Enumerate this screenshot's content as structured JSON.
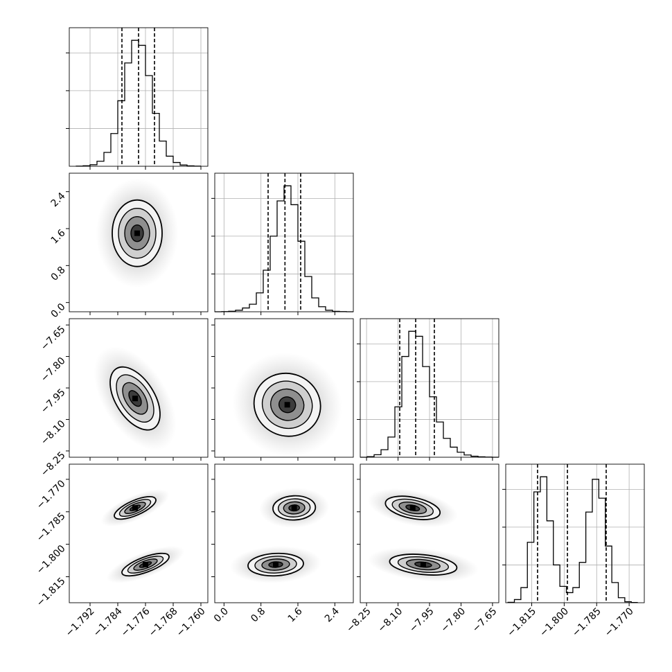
{
  "chart_data": {
    "type": "corner",
    "grid": true,
    "hist_ylim": [
      0,
      1100
    ],
    "hist_yticks": [
      300,
      600,
      900
    ],
    "params": [
      {
        "lim": [
          -1.798,
          -1.758
        ],
        "ticks": [
          {
            "value": -1.792,
            "label": "−1.792"
          },
          {
            "value": -1.784,
            "label": "−1.784"
          },
          {
            "value": -1.776,
            "label": "−1.776"
          },
          {
            "value": -1.768,
            "label": "−1.768"
          },
          {
            "value": -1.76,
            "label": "−1.760"
          }
        ]
      },
      {
        "lim": [
          -0.2,
          2.8
        ],
        "ticks": [
          {
            "value": 0,
            "label": "0.0"
          },
          {
            "value": 0.8,
            "label": "0.8"
          },
          1.6,
          2.4
        ]
      },
      {
        "lim": [
          -8.28,
          -7.62
        ],
        "ticks": [
          {
            "value": -8.25,
            "label": "−8.25"
          },
          {
            "value": -8.1,
            "label": "−8.10"
          },
          {
            "value": -7.95,
            "label": "−7.95"
          },
          {
            "value": -7.8,
            "label": "−7.80"
          },
          {
            "value": -7.65,
            "label": "−7.65"
          }
        ]
      },
      {
        "lim": [
          -1.827,
          -1.763
        ],
        "ticks": [
          {
            "value": -1.815,
            "label": "−1.815"
          },
          {
            "value": -1.8,
            "label": "−1.800"
          },
          {
            "value": -1.785,
            "label": "−1.785"
          },
          {
            "value": -1.77,
            "label": "−1.770"
          }
        ]
      }
    ],
    "histograms": [
      {
        "bins": [
          -1.796,
          -1.794,
          -1.792,
          -1.79,
          -1.788,
          -1.786,
          -1.784,
          -1.782,
          -1.78,
          -1.778,
          -1.776,
          -1.774,
          -1.772,
          -1.77,
          -1.768,
          -1.766,
          -1.764,
          -1.762,
          -1.76
        ],
        "counts": [
          1,
          4,
          12,
          40,
          110,
          260,
          520,
          820,
          1000,
          960,
          720,
          420,
          200,
          80,
          30,
          10,
          3,
          1
        ],
        "quantiles": [
          -1.7828,
          -1.778,
          -1.7734
        ]
      },
      {
        "bins": [
          -0.2,
          -0.05,
          0.1,
          0.25,
          0.4,
          0.55,
          0.7,
          0.85,
          1,
          1.15,
          1.3,
          1.45,
          1.6,
          1.75,
          1.9,
          2.05,
          2.2,
          2.35,
          2.5,
          2.65,
          2.8
        ],
        "counts": [
          0,
          1,
          4,
          12,
          30,
          60,
          150,
          330,
          600,
          880,
          1000,
          850,
          560,
          280,
          110,
          40,
          12,
          3,
          1,
          0
        ],
        "quantiles": [
          0.955,
          1.32,
          1.66
        ]
      },
      {
        "bins": [
          -8.28,
          -8.247,
          -8.214,
          -8.181,
          -8.148,
          -8.115,
          -8.082,
          -8.049,
          -8.016,
          -7.983,
          -7.95,
          -7.917,
          -7.884,
          -7.851,
          -7.818,
          -7.785,
          -7.752,
          -7.719,
          -7.686,
          -7.653,
          -7.62
        ],
        "counts": [
          0,
          5,
          20,
          60,
          160,
          400,
          800,
          1000,
          960,
          720,
          480,
          280,
          150,
          80,
          40,
          18,
          8,
          3,
          1,
          0
        ],
        "quantiles": [
          -8.092,
          -8.016,
          -7.927
        ]
      },
      {
        "bins": [
          -1.826,
          -1.823,
          -1.82,
          -1.817,
          -1.814,
          -1.811,
          -1.808,
          -1.805,
          -1.802,
          -1.799,
          -1.796,
          -1.793,
          -1.79,
          -1.787,
          -1.784,
          -1.781,
          -1.778,
          -1.775,
          -1.772,
          -1.769,
          -1.766
        ],
        "counts": [
          3,
          25,
          120,
          480,
          880,
          1000,
          650,
          300,
          130,
          80,
          120,
          320,
          720,
          980,
          830,
          450,
          160,
          40,
          8,
          2
        ],
        "quantiles": [
          -1.8123,
          -1.7985,
          -1.7806
        ]
      }
    ],
    "pairs": [
      {
        "x": 0,
        "y": 1,
        "blobs": [
          {
            "x": -1.7784,
            "y": 1.5,
            "sx": 0.0036,
            "sy": 0.36,
            "rho": 0
          }
        ]
      },
      {
        "x": 0,
        "y": 2,
        "blobs": [
          {
            "x": -1.779,
            "y": -8.0,
            "sx": 0.0036,
            "sy": 0.075,
            "rho": -0.5
          }
        ]
      },
      {
        "x": 1,
        "y": 2,
        "blobs": [
          {
            "x": 1.37,
            "y": -8.03,
            "sx": 0.36,
            "sy": 0.075,
            "rho": -0.05
          }
        ]
      },
      {
        "x": 0,
        "y": 3,
        "blobs": [
          {
            "x": -1.779,
            "y": -1.7832,
            "sx": 0.003,
            "sy": 0.0026,
            "rho": 0.7
          },
          {
            "x": -1.776,
            "y": -1.8094,
            "sx": 0.0034,
            "sy": 0.0026,
            "rho": 0.7
          }
        ]
      },
      {
        "x": 1,
        "y": 3,
        "blobs": [
          {
            "x": 1.52,
            "y": -1.7832,
            "sx": 0.23,
            "sy": 0.0028,
            "rho": 0.05
          },
          {
            "x": 1.12,
            "y": -1.8094,
            "sx": 0.3,
            "sy": 0.0026,
            "rho": 0.1
          }
        ]
      },
      {
        "x": 2,
        "y": 3,
        "blobs": [
          {
            "x": -8.03,
            "y": -1.7832,
            "sx": 0.065,
            "sy": 0.0027,
            "rho": -0.4
          },
          {
            "x": -7.98,
            "y": -1.8094,
            "sx": 0.08,
            "sy": 0.0024,
            "rho": -0.3
          }
        ]
      }
    ]
  }
}
